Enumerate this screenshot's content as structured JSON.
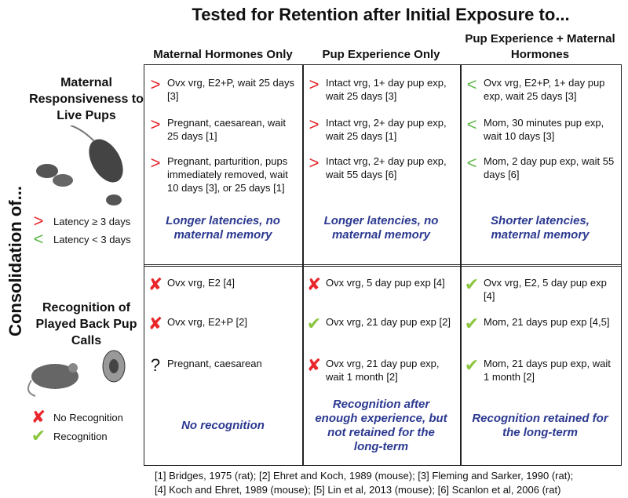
{
  "title": "Tested for Retention after Initial Exposure to...",
  "side_label": "Consolidation of...",
  "columns": [
    "Maternal Hormones Only",
    "Pup Experience Only",
    "Pup Experience + Maternal Hormones"
  ],
  "symbol_colors": {
    ">": "#e8262b",
    "<": "#5fb84a",
    "✘": "#e8262b",
    "✔": "#8cc63f",
    "?": "#111111"
  },
  "rows": [
    {
      "label": "Maternal Responsiveness to Live Pups",
      "legend": [
        {
          "symbol": ">",
          "text": "Latency ≥ 3 days"
        },
        {
          "symbol": "<",
          "text": "Latency < 3 days"
        }
      ],
      "cells": [
        {
          "items": [
            {
              "symbol": ">",
              "text": "Ovx vrg, E2+P, wait 25 days [3]"
            },
            {
              "symbol": ">",
              "text": "Pregnant, caesarean, wait 25 days [1]"
            },
            {
              "symbol": ">",
              "text": "Pregnant, parturition, pups immediately removed, wait 10 days [3], or 25 days [1]"
            }
          ],
          "summary": "Longer latencies, no maternal memory"
        },
        {
          "items": [
            {
              "symbol": ">",
              "text": "Intact vrg, 1+ day pup exp, wait 25 days [3]"
            },
            {
              "symbol": ">",
              "text": "Intact vrg, 2+ day pup exp, wait 25 days [1]"
            },
            {
              "symbol": ">",
              "text": "Intact vrg, 2+ day pup exp, wait 55 days [6]"
            }
          ],
          "summary": "Longer latencies, no maternal memory"
        },
        {
          "items": [
            {
              "symbol": "<",
              "text": "Ovx vrg, E2+P, 1+ day pup exp, wait 25 days [3]"
            },
            {
              "symbol": "<",
              "text": "Mom, 30 minutes pup exp, wait 10 days [3]"
            },
            {
              "symbol": "<",
              "text": "Mom, 2 day pup exp, wait 55 days [6]"
            }
          ],
          "summary": "Shorter latencies, maternal memory"
        }
      ]
    },
    {
      "label": "Recognition of Played Back Pup Calls",
      "legend": [
        {
          "symbol": "✘",
          "text": "No Recognition"
        },
        {
          "symbol": "✔",
          "text": "Recognition"
        }
      ],
      "cells": [
        {
          "items": [
            {
              "symbol": "✘",
              "text": "Ovx vrg, E2 [4]"
            },
            {
              "symbol": "✘",
              "text": "Ovx vrg, E2+P [2]"
            },
            {
              "symbol": "?",
              "text": "Pregnant, caesarean"
            }
          ],
          "summary": "No recognition"
        },
        {
          "items": [
            {
              "symbol": "✘",
              "text": "Ovx vrg, 5 day pup exp [4]"
            },
            {
              "symbol": "✔",
              "text": "Ovx vrg, 21 day pup exp [2]"
            },
            {
              "symbol": "✘",
              "text": "Ovx vrg, 21 day pup exp, wait 1 month [2]"
            }
          ],
          "summary": "Recognition after enough experience, but not retained for the long-term"
        },
        {
          "items": [
            {
              "symbol": "✔",
              "text": "Ovx vrg, E2, 5 day pup exp [4]"
            },
            {
              "symbol": "✔",
              "text": "Mom, 21 days pup exp [4,5]"
            },
            {
              "symbol": "✔",
              "text": "Mom, 21 days pup exp, wait 1 month [2]"
            }
          ],
          "summary": "Recognition retained for the long-term"
        }
      ]
    }
  ],
  "references": [
    "[1] Bridges, 1975 (rat); [2] Ehret and Koch, 1989 (mouse); [3] Fleming and Sarker, 1990 (rat);",
    "[4] Koch and Ehret, 1989 (mouse); [5] Lin et al, 2013 (mouse); [6] Scanlon et al, 2006 (rat)"
  ]
}
